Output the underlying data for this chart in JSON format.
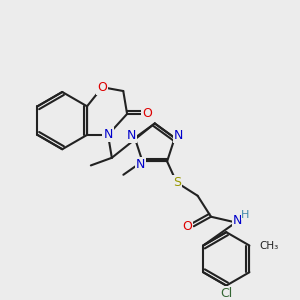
{
  "bg_color": "#ececec",
  "bond_color": "#222222",
  "bond_width": 1.5,
  "figsize": [
    3.0,
    3.0
  ],
  "dpi": 100,
  "colors": {
    "O": "#dd0000",
    "N": "#0000cc",
    "S": "#999900",
    "Cl": "#336633",
    "NH": "#4488aa",
    "C": "#222222"
  }
}
